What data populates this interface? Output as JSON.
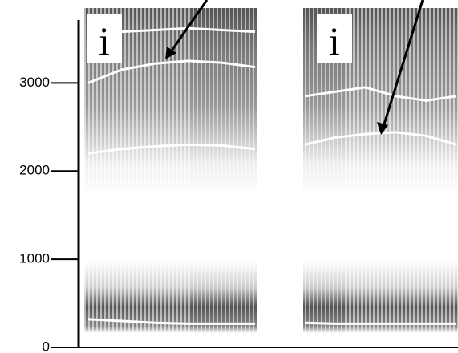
{
  "chart_data": {
    "type": "spectrogram",
    "ylim": [
      0,
      3850
    ],
    "yticks": [
      0,
      1000,
      2000,
      3000
    ],
    "panels": [
      {
        "label": "i",
        "series": [
          {
            "color": "#ffffff",
            "values": [
              320,
              300,
              280,
              270,
              270,
              270
            ]
          },
          {
            "color": "#ffffff",
            "values": [
              2200,
              2250,
              2280,
              2300,
              2290,
              2250
            ]
          },
          {
            "color": "#ffffff",
            "values": [
              3000,
              3150,
              3220,
              3250,
              3230,
              3180
            ]
          },
          {
            "color": "#ffffff",
            "values": [
              3550,
              3580,
              3600,
              3620,
              3600,
              3580
            ]
          }
        ]
      },
      {
        "label": "i",
        "series": [
          {
            "color": "#ffffff",
            "values": [
              280,
              270,
              270,
              270,
              270,
              270
            ]
          },
          {
            "color": "#ffffff",
            "values": [
              2300,
              2380,
              2420,
              2440,
              2400,
              2300
            ]
          },
          {
            "color": "#ffffff",
            "values": [
              2850,
              2900,
              2950,
              2850,
              2800,
              2850
            ]
          }
        ]
      }
    ]
  }
}
